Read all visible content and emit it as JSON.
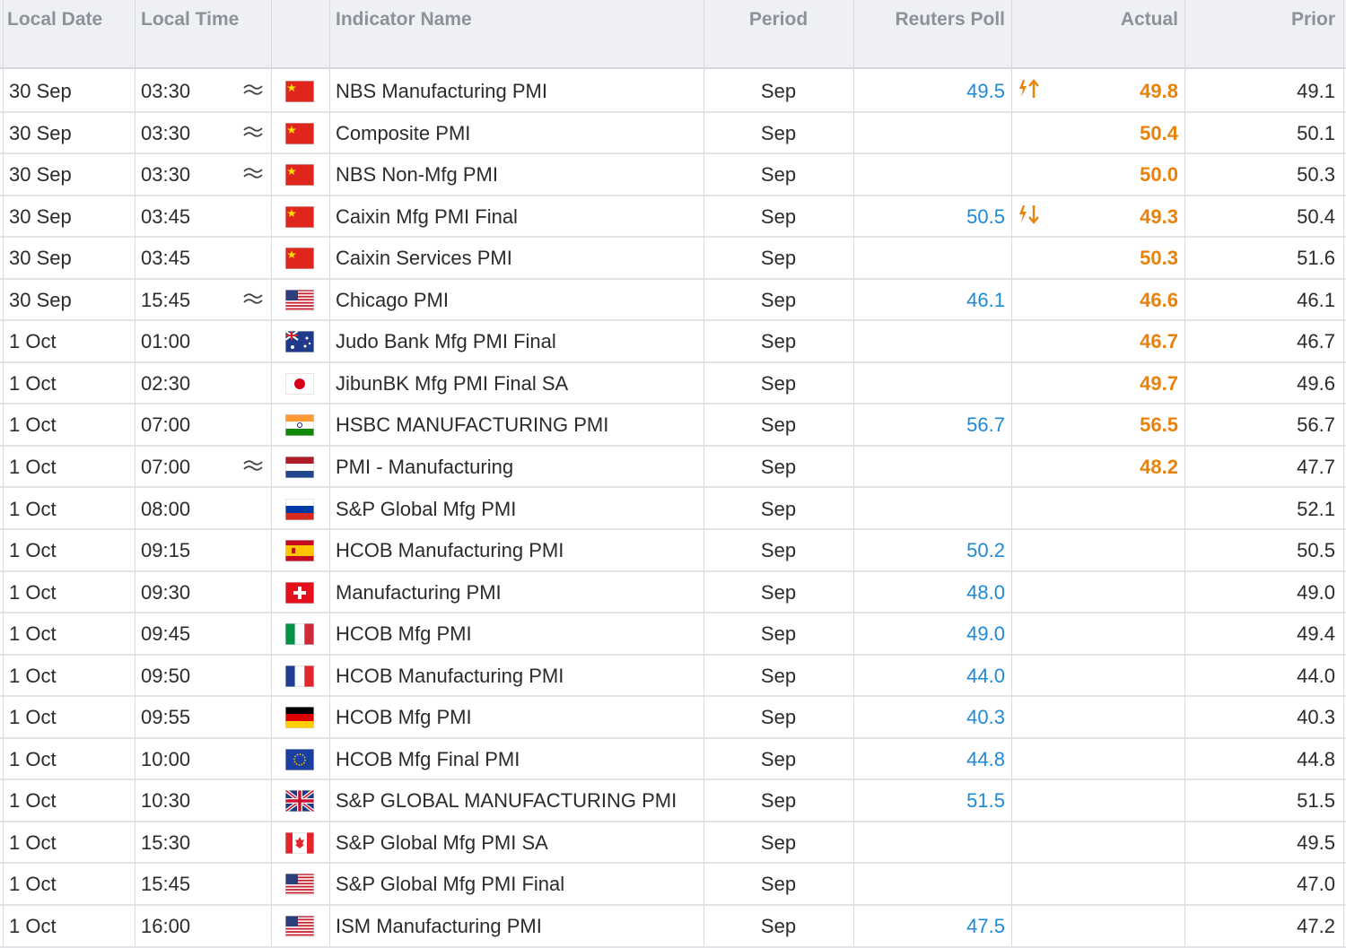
{
  "header": {
    "local_date": "Local Date",
    "local_time": "Local Time",
    "indicator": "Indicator Name",
    "period": "Period",
    "poll": "Reuters Poll",
    "actual": "Actual",
    "prior": "Prior"
  },
  "rows": [
    {
      "date": "30 Sep",
      "time": "03:30",
      "indicator": "NBS Manufacturing PMI",
      "period": "Sep",
      "poll": "49.5",
      "actual": "49.8",
      "prior": "49.1"
    },
    {
      "date": "30 Sep",
      "time": "03:30",
      "indicator": "Composite PMI",
      "period": "Sep",
      "actual": "50.4",
      "prior": "50.1"
    },
    {
      "date": "30 Sep",
      "time": "03:30",
      "indicator": "NBS Non-Mfg PMI",
      "period": "Sep",
      "actual": "50.0",
      "prior": "50.3"
    },
    {
      "date": "30 Sep",
      "time": "03:45",
      "indicator": "Caixin Mfg PMI Final",
      "period": "Sep",
      "poll": "50.5",
      "actual": "49.3",
      "prior": "50.4"
    },
    {
      "date": "30 Sep",
      "time": "03:45",
      "indicator": "Caixin Services PMI",
      "period": "Sep",
      "actual": "50.3",
      "prior": "51.6"
    },
    {
      "date": "30 Sep",
      "time": "15:45",
      "indicator": "Chicago PMI",
      "period": "Sep",
      "poll": "46.1",
      "actual": "46.6",
      "prior": "46.1"
    },
    {
      "date": "1 Oct",
      "time": "01:00",
      "indicator": "Judo Bank Mfg PMI Final",
      "period": "Sep",
      "actual": "46.7",
      "prior": "46.7"
    },
    {
      "date": "1 Oct",
      "time": "02:30",
      "indicator": "JibunBK Mfg PMI Final SA",
      "period": "Sep",
      "actual": "49.7",
      "prior": "49.6"
    },
    {
      "date": "1 Oct",
      "time": "07:00",
      "indicator": "HSBC MANUFACTURING PMI",
      "period": "Sep",
      "poll": "56.7",
      "actual": "56.5",
      "prior": "56.7"
    },
    {
      "date": "1 Oct",
      "time": "07:00",
      "indicator": "PMI - Manufacturing",
      "period": "Sep",
      "actual": "48.2",
      "prior": "47.7"
    },
    {
      "date": "1 Oct",
      "time": "08:00",
      "indicator": "S&P Global Mfg PMI",
      "period": "Sep",
      "prior": "52.1"
    },
    {
      "date": "1 Oct",
      "time": "09:15",
      "indicator": "HCOB Manufacturing PMI",
      "period": "Sep",
      "poll": "50.2",
      "prior": "50.5"
    },
    {
      "date": "1 Oct",
      "time": "09:30",
      "indicator": "Manufacturing PMI",
      "period": "Sep",
      "poll": "48.0",
      "prior": "49.0"
    },
    {
      "date": "1 Oct",
      "time": "09:45",
      "indicator": "HCOB Mfg PMI",
      "period": "Sep",
      "poll": "49.0",
      "prior": "49.4"
    },
    {
      "date": "1 Oct",
      "time": "09:50",
      "indicator": "HCOB Manufacturing PMI",
      "period": "Sep",
      "poll": "44.0",
      "prior": "44.0"
    },
    {
      "date": "1 Oct",
      "time": "09:55",
      "indicator": "HCOB Mfg PMI",
      "period": "Sep",
      "poll": "40.3",
      "prior": "40.3"
    },
    {
      "date": "1 Oct",
      "time": "10:00",
      "indicator": "HCOB Mfg Final PMI",
      "period": "Sep",
      "poll": "44.8",
      "prior": "44.8"
    },
    {
      "date": "1 Oct",
      "time": "10:30",
      "indicator": "S&P GLOBAL MANUFACTURING PMI",
      "period": "Sep",
      "poll": "51.5",
      "prior": "51.5"
    },
    {
      "date": "1 Oct",
      "time": "15:30",
      "indicator": "S&P Global Mfg PMI SA",
      "period": "Sep",
      "prior": "49.5"
    },
    {
      "date": "1 Oct",
      "time": "15:45",
      "indicator": "S&P Global Mfg PMI Final",
      "period": "Sep",
      "prior": "47.0"
    },
    {
      "date": "1 Oct",
      "time": "16:00",
      "indicator": "ISM Manufacturing PMI",
      "period": "Sep",
      "poll": "47.5",
      "prior": "47.2"
    }
  ]
}
